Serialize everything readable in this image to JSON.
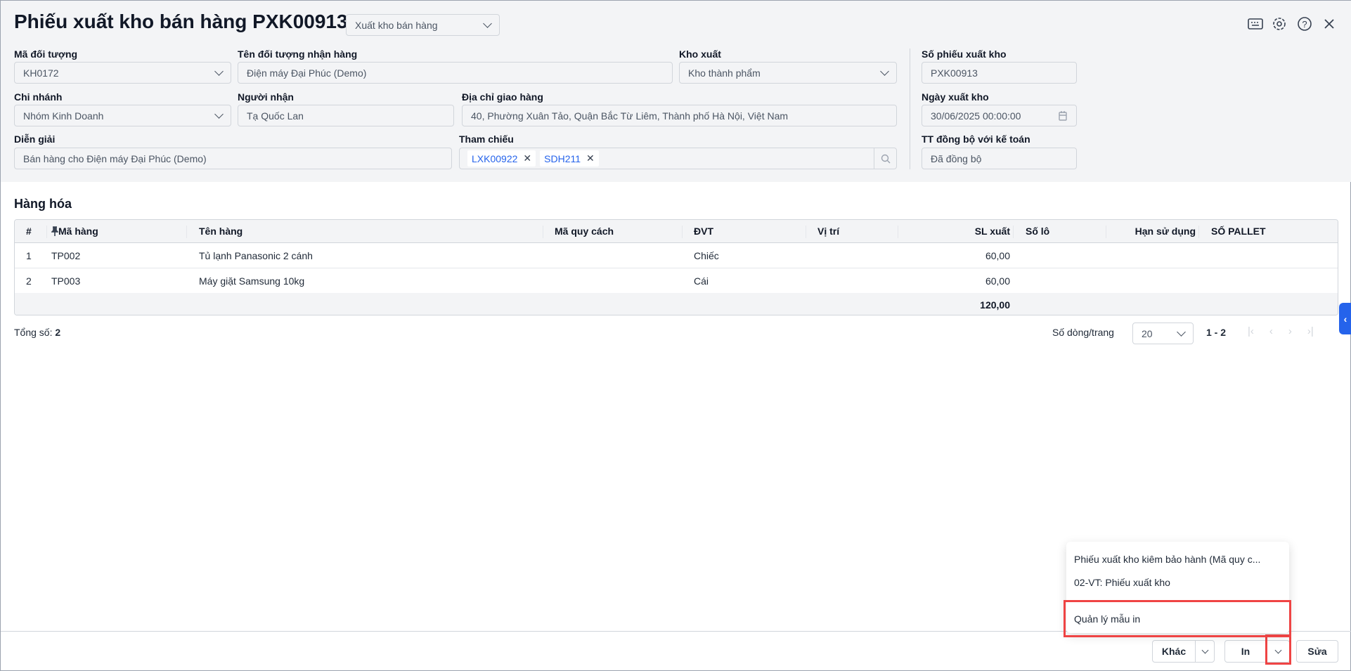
{
  "header": {
    "title": "Phiếu xuất kho bán hàng PXK00913",
    "type_select": "Xuất kho bán hàng",
    "icons": [
      "keyboard-icon",
      "gear-icon",
      "help-icon",
      "close-icon"
    ]
  },
  "form": {
    "ma_doi_tuong": {
      "label": "Mã đối tượng",
      "value": "KH0172"
    },
    "ten_doi_tuong": {
      "label": "Tên đối tượng nhận hàng",
      "value": "Điện máy Đại Phúc (Demo)"
    },
    "kho_xuat": {
      "label": "Kho xuất",
      "value": "Kho thành phẩm"
    },
    "so_phieu": {
      "label": "Số phiếu xuất kho",
      "value": "PXK00913"
    },
    "chi_nhanh": {
      "label": "Chi nhánh",
      "value": "Nhóm Kinh Doanh"
    },
    "nguoi_nhan": {
      "label": "Người nhận",
      "value": "Tạ Quốc Lan"
    },
    "dia_chi": {
      "label": "Địa chỉ giao hàng",
      "value": "40, Phường Xuân Tảo, Quận Bắc Từ Liêm, Thành phố Hà Nội, Việt Nam"
    },
    "ngay_xuat": {
      "label": "Ngày xuất kho",
      "value": "30/06/2025 00:00:00"
    },
    "dien_giai": {
      "label": "Diễn giải",
      "value": "Bán hàng cho Điện máy Đại Phúc (Demo)"
    },
    "tham_chieu": {
      "label": "Tham chiếu",
      "tags": [
        "LXK00922",
        "SDH211"
      ]
    },
    "tt_dong_bo": {
      "label": "TT đồng bộ với kế toán",
      "value": "Đã đồng bộ"
    }
  },
  "goods": {
    "title": "Hàng hóa",
    "columns": [
      "#",
      "Mã hàng",
      "Tên hàng",
      "Mã quy cách",
      "ĐVT",
      "Vị trí",
      "SL xuất",
      "Số lô",
      "Hạn sử dụng",
      "SỐ PALLET"
    ],
    "rows": [
      {
        "no": "1",
        "code": "TP002",
        "name": "Tủ lạnh Panasonic 2 cánh",
        "unit": "Chiếc",
        "qty": "60,00"
      },
      {
        "no": "2",
        "code": "TP003",
        "name": "Máy giặt Samsung 10kg",
        "unit": "Cái",
        "qty": "60,00"
      }
    ],
    "total_qty": "120,00",
    "total_label": "Tổng số:",
    "total_count": "2",
    "page_size_label": "Số dòng/trang",
    "page_size": "20",
    "range": "1 - 2"
  },
  "menu": {
    "items": [
      "Phiếu xuất kho kiêm bảo hành (Mã quy c...",
      "02-VT: Phiếu xuất kho",
      "Quản lý mẫu in"
    ],
    "highlight_color": "#ef4444"
  },
  "footer": {
    "khac": "Khác",
    "in": "In",
    "sua": "Sửa"
  }
}
